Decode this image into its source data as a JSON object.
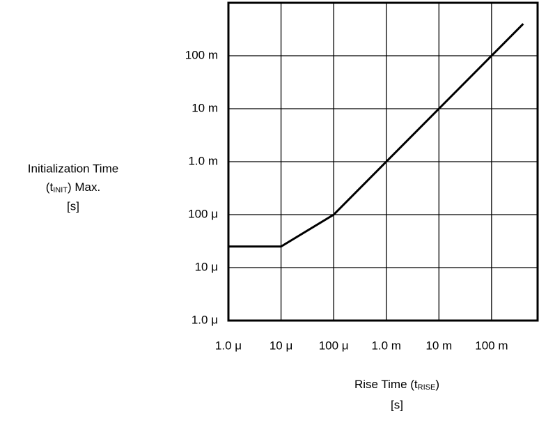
{
  "chart_data": {
    "type": "line",
    "x_label": {
      "text": "Rise Time (t",
      "sub": "RISE",
      "close": ")",
      "unit": "[s]"
    },
    "y_label": {
      "line1": "Initialization Time",
      "open": "(t",
      "sub": "INIT",
      "close": ") Max.",
      "unit": "[s]"
    },
    "xscale": "log",
    "yscale": "log",
    "grid": true,
    "xlim": [
      1e-06,
      0.75
    ],
    "ylim": [
      1e-06,
      1
    ],
    "xticks": [
      {
        "value": 1e-06,
        "label": "1.0 μ"
      },
      {
        "value": 1e-05,
        "label": "10 μ"
      },
      {
        "value": 0.0001,
        "label": "100 μ"
      },
      {
        "value": 0.001,
        "label": "1.0 m"
      },
      {
        "value": 0.01,
        "label": "10 m"
      },
      {
        "value": 0.1,
        "label": "100 m"
      }
    ],
    "yticks": [
      {
        "value": 1e-06,
        "label": "1.0 μ"
      },
      {
        "value": 1e-05,
        "label": "10 μ"
      },
      {
        "value": 0.0001,
        "label": "100 μ"
      },
      {
        "value": 0.001,
        "label": "1.0 m"
      },
      {
        "value": 0.01,
        "label": "10 m"
      },
      {
        "value": 0.1,
        "label": "100 m"
      }
    ],
    "series": [
      {
        "color": "#000000",
        "x": [
          1e-06,
          1e-05,
          0.0001,
          0.4
        ],
        "values": [
          2.5e-05,
          2.5e-05,
          0.0001,
          0.4
        ]
      }
    ]
  }
}
